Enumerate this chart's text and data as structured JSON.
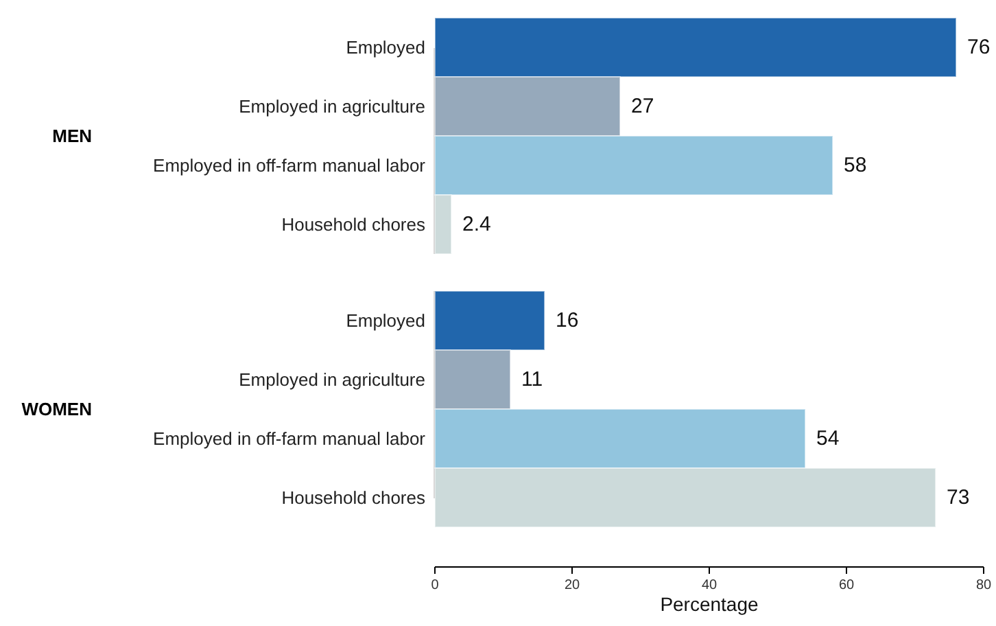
{
  "chart_data": [
    {
      "type": "bar",
      "orientation": "horizontal",
      "ylabel": "MEN",
      "categories": [
        "Employed",
        "Employed in agriculture",
        "Employed in off-farm manual labor",
        "Household chores"
      ],
      "values": [
        76,
        27,
        58,
        2.4
      ],
      "colors": [
        "#2166ac",
        "#96a9bb",
        "#92c5de",
        "#ccdada"
      ],
      "xlim": [
        0,
        80
      ],
      "data_labels": true,
      "tick_labels": "y"
    },
    {
      "type": "bar",
      "orientation": "horizontal",
      "ylabel": "WOMEN",
      "xlabel": "Percentage",
      "categories": [
        "Employed",
        "Employed in agriculture",
        "Employed in off-farm manual labor",
        "Household chores"
      ],
      "values": [
        16,
        11,
        54,
        73
      ],
      "colors": [
        "#2166ac",
        "#96a9bb",
        "#92c5de",
        "#ccdada"
      ],
      "xlim": [
        0,
        80
      ],
      "xticks": [
        0,
        20,
        40,
        60,
        80
      ],
      "data_labels": true
    }
  ]
}
